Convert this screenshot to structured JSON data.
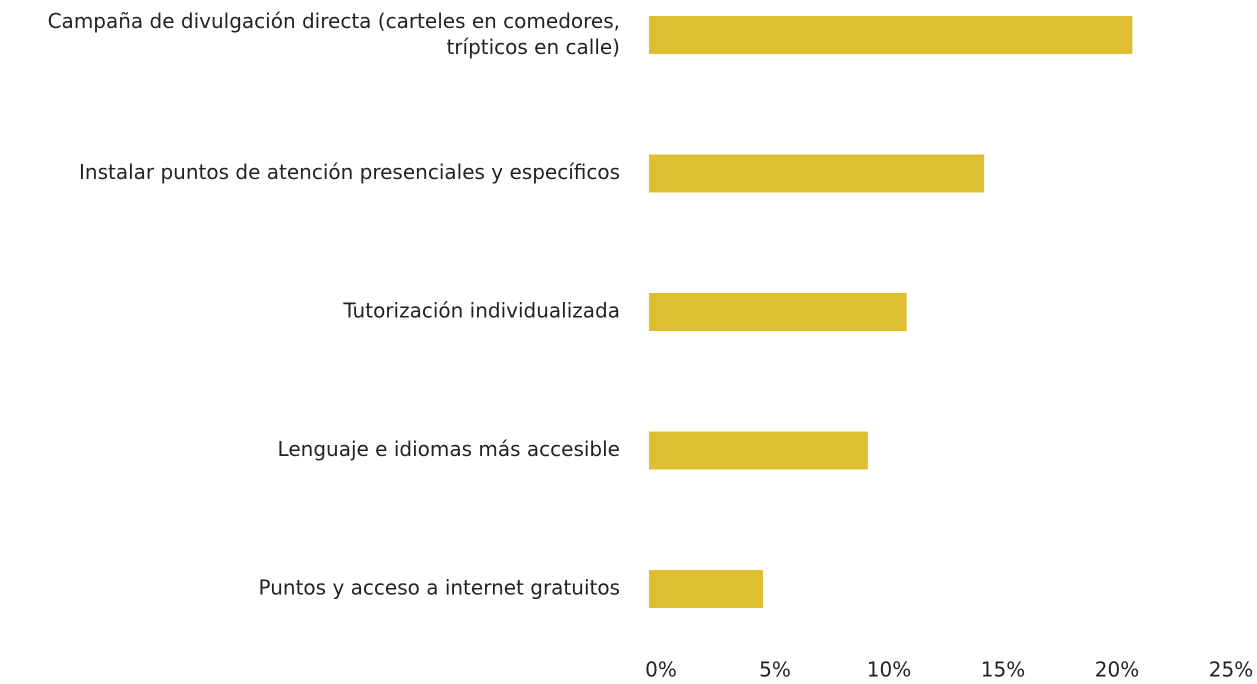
{
  "chart_data": {
    "type": "barh",
    "categories": [
      "Campaña de divulgación directa (carteles en comedores, trípticos en calle)",
      "Instalar puntos de atención presenciales y específicos",
      "Tutorización individualizada",
      "Lenguaje e idiomas más accesible",
      "Puntos y acceso a internet gratuitos"
    ],
    "values": [
      21.2,
      14.7,
      11.3,
      9.6,
      5.0
    ],
    "color": "#dfbf32",
    "xlim": [
      0,
      25
    ],
    "xticks": [
      {
        "value": 0,
        "label": "0%"
      },
      {
        "value": 5,
        "label": "5%"
      },
      {
        "value": 10,
        "label": "10%"
      },
      {
        "value": 15,
        "label": "15%"
      },
      {
        "value": 20,
        "label": "20%"
      },
      {
        "value": 25,
        "label": "25%"
      }
    ],
    "grid": false
  }
}
